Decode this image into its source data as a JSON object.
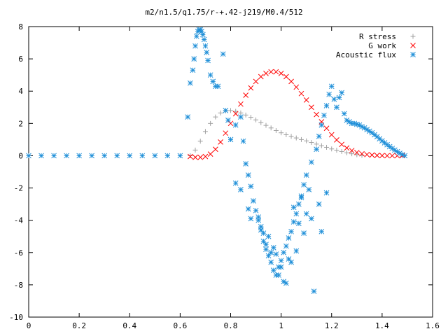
{
  "chart_data": {
    "type": "scatter",
    "title": "m2/n1.5/q1.75/r-+.42-j219/M0.4/512",
    "xlabel": "",
    "ylabel": "",
    "xlim": [
      0,
      1.6
    ],
    "ylim": [
      -10,
      8
    ],
    "xticks": [
      "0",
      "0.2",
      "0.4",
      "0.6",
      "0.8",
      "1",
      "1.2",
      "1.4",
      "1.6"
    ],
    "xtick_values": [
      0,
      0.2,
      0.4,
      0.6,
      0.8,
      1.0,
      1.2,
      1.4,
      1.6
    ],
    "yticks": [
      "8",
      "6",
      "4",
      "2",
      "0",
      "-2",
      "-4",
      "-6",
      "-8",
      "-10"
    ],
    "ytick_values": [
      8,
      6,
      4,
      2,
      0,
      -2,
      -4,
      -6,
      -8,
      -10
    ],
    "grid": false,
    "legend_position": "top-right",
    "series": [
      {
        "name": "R stress",
        "marker": "plus",
        "color": "#a0a0a0",
        "x": [
          0.64,
          0.66,
          0.68,
          0.7,
          0.72,
          0.74,
          0.76,
          0.78,
          0.8,
          0.82,
          0.84,
          0.86,
          0.88,
          0.9,
          0.92,
          0.94,
          0.96,
          0.98,
          1.0,
          1.02,
          1.04,
          1.06,
          1.08,
          1.1,
          1.12,
          1.14,
          1.16,
          1.18,
          1.2,
          1.22,
          1.24,
          1.26,
          1.28,
          1.3,
          1.32
        ],
        "y": [
          0.0,
          0.35,
          0.9,
          1.5,
          2.0,
          2.4,
          2.65,
          2.78,
          2.8,
          2.75,
          2.65,
          2.52,
          2.38,
          2.22,
          2.05,
          1.88,
          1.72,
          1.56,
          1.42,
          1.3,
          1.2,
          1.1,
          1.0,
          0.92,
          0.82,
          0.72,
          0.62,
          0.52,
          0.42,
          0.34,
          0.26,
          0.18,
          0.12,
          0.06,
          0.02
        ]
      },
      {
        "name": "G work",
        "marker": "cross",
        "color": "#ff0000",
        "x": [
          0.64,
          0.66,
          0.68,
          0.7,
          0.72,
          0.74,
          0.76,
          0.78,
          0.8,
          0.82,
          0.84,
          0.86,
          0.88,
          0.9,
          0.92,
          0.94,
          0.96,
          0.98,
          1.0,
          1.02,
          1.04,
          1.06,
          1.08,
          1.1,
          1.12,
          1.14,
          1.16,
          1.18,
          1.2,
          1.22,
          1.24,
          1.26,
          1.28,
          1.3,
          1.32,
          1.34,
          1.36,
          1.38,
          1.4,
          1.42,
          1.44,
          1.46,
          1.48
        ],
        "y": [
          -0.05,
          -0.1,
          -0.1,
          -0.05,
          0.1,
          0.4,
          0.85,
          1.4,
          2.0,
          2.6,
          3.2,
          3.75,
          4.2,
          4.6,
          4.9,
          5.1,
          5.2,
          5.2,
          5.1,
          4.9,
          4.6,
          4.25,
          3.85,
          3.45,
          3.0,
          2.55,
          2.1,
          1.7,
          1.3,
          0.98,
          0.7,
          0.48,
          0.32,
          0.2,
          0.12,
          0.07,
          0.04,
          0.02,
          0.01,
          0.0,
          0.0,
          0.0,
          0.0
        ]
      },
      {
        "name": "Acoustic flux",
        "marker": "star",
        "color": "#1f8fd8",
        "x": [
          0.0,
          0.05,
          0.1,
          0.15,
          0.2,
          0.25,
          0.3,
          0.35,
          0.4,
          0.45,
          0.5,
          0.55,
          0.6,
          0.63,
          0.64,
          0.65,
          0.655,
          0.66,
          0.665,
          0.67,
          0.675,
          0.68,
          0.685,
          0.69,
          0.695,
          0.7,
          0.705,
          0.71,
          0.72,
          0.73,
          0.74,
          0.75,
          0.77,
          0.78,
          0.79,
          0.8,
          0.82,
          0.84,
          0.85,
          0.86,
          0.87,
          0.88,
          0.89,
          0.9,
          0.91,
          0.92,
          0.93,
          0.94,
          0.95,
          0.96,
          0.97,
          0.98,
          0.99,
          1.0,
          1.01,
          1.02,
          1.03,
          1.04,
          1.05,
          1.06,
          1.07,
          1.08,
          1.09,
          1.1,
          1.12,
          1.14,
          1.15,
          1.16,
          1.17,
          1.18,
          1.19,
          1.2,
          1.21,
          1.22,
          1.23,
          1.24,
          1.25,
          1.26,
          1.27,
          1.28,
          1.29,
          1.3,
          1.31,
          1.32,
          1.33,
          1.34,
          1.35,
          1.36,
          1.37,
          1.38,
          1.39,
          1.4,
          1.41,
          1.42,
          1.43,
          1.44,
          1.45,
          1.46,
          1.47,
          1.48,
          1.49,
          0.82,
          0.84,
          0.88,
          0.92,
          0.95,
          0.97,
          1.0,
          1.03,
          1.06,
          1.09,
          1.12,
          1.15,
          1.18,
          0.93,
          0.96,
          0.99,
          1.02,
          1.05,
          1.08,
          1.11,
          0.87,
          0.91,
          0.94,
          0.98,
          1.01,
          1.04,
          1.07,
          1.1,
          1.13,
          1.16
        ],
        "y": [
          0.0,
          0.0,
          0.0,
          0.0,
          0.0,
          0.0,
          0.0,
          0.0,
          0.0,
          0.0,
          0.0,
          0.0,
          0.0,
          2.4,
          4.5,
          5.3,
          6.0,
          6.8,
          7.4,
          7.7,
          7.8,
          7.8,
          7.7,
          7.5,
          7.2,
          6.8,
          6.4,
          5.9,
          5.0,
          4.6,
          4.3,
          4.3,
          6.3,
          2.8,
          2.2,
          1.0,
          1.9,
          2.4,
          0.9,
          -0.5,
          -1.2,
          -1.9,
          -2.8,
          -3.4,
          -4.0,
          -4.6,
          -5.3,
          -5.8,
          -6.2,
          -6.6,
          -7.1,
          -7.4,
          -6.9,
          -6.5,
          -6.0,
          -5.6,
          -5.1,
          -4.7,
          -4.1,
          -3.6,
          -3.0,
          -2.5,
          -1.8,
          -1.2,
          -0.4,
          0.4,
          1.2,
          1.9,
          2.5,
          3.1,
          3.8,
          4.3,
          3.5,
          3.0,
          3.6,
          3.9,
          2.6,
          2.2,
          2.1,
          2.0,
          2.0,
          1.95,
          1.9,
          1.8,
          1.72,
          1.62,
          1.52,
          1.42,
          1.3,
          1.18,
          1.05,
          0.92,
          0.8,
          0.68,
          0.56,
          0.45,
          0.35,
          0.25,
          0.15,
          0.07,
          0.0,
          -1.7,
          -2.1,
          -3.9,
          -4.4,
          -5.0,
          -5.7,
          -6.9,
          -6.4,
          -5.9,
          -4.8,
          -3.9,
          -3.0,
          -2.3,
          -4.8,
          -6.0,
          -7.4,
          -7.9,
          -3.2,
          -2.6,
          -2.1,
          -3.3,
          -3.8,
          -5.5,
          -6.1,
          -7.8,
          -6.6,
          -4.2,
          -3.6,
          -8.4,
          -4.7
        ]
      }
    ]
  }
}
